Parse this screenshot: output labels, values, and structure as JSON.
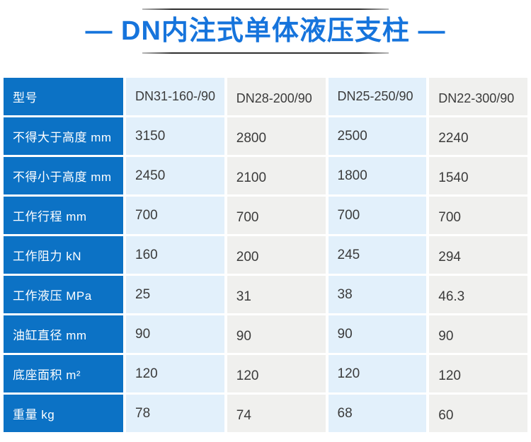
{
  "title": {
    "text": "— DN内注式单体液压支柱 —"
  },
  "colors": {
    "title_blue": "#1674dc",
    "header_blue": "#0c72c5",
    "cell_blue": "#e2f0fb",
    "cell_gray": "#f0f0ee",
    "value_text": "#3b3b3b"
  },
  "table": {
    "corner_label": "型号",
    "models": [
      "DN31-160-/90",
      "DN28-200/90",
      "DN25-250/90",
      "DN22-300/90"
    ],
    "rows": [
      {
        "label": "不得大于高度 mm",
        "values": [
          "3150",
          "2800",
          "2500",
          "2240"
        ]
      },
      {
        "label": "不得小于高度 mm",
        "values": [
          "2450",
          "2100",
          "1800",
          "1540"
        ]
      },
      {
        "label": "工作行程 mm",
        "values": [
          "700",
          "700",
          "700",
          "700"
        ]
      },
      {
        "label": "工作阻力 kN",
        "values": [
          "160",
          "200",
          "245",
          "294"
        ]
      },
      {
        "label": "工作液压 MPa",
        "values": [
          "25",
          "31",
          "38",
          "46.3"
        ]
      },
      {
        "label": "油缸直径 mm",
        "values": [
          "90",
          "90",
          "90",
          "90"
        ]
      },
      {
        "label": "底座面积 m²",
        "values": [
          "120",
          "120",
          "120",
          "120"
        ]
      },
      {
        "label": "重量 kg",
        "values": [
          "78",
          "74",
          "68",
          "60"
        ]
      }
    ]
  },
  "chart_data": {
    "type": "table",
    "title": "DN内注式单体液压支柱",
    "columns": [
      "型号",
      "DN31-160-/90",
      "DN28-200/90",
      "DN25-250/90",
      "DN22-300/90"
    ],
    "rows": [
      [
        "不得大于高度 mm",
        3150,
        2800,
        2500,
        2240
      ],
      [
        "不得小于高度 mm",
        2450,
        2100,
        1800,
        1540
      ],
      [
        "工作行程 mm",
        700,
        700,
        700,
        700
      ],
      [
        "工作阻力 kN",
        160,
        200,
        245,
        294
      ],
      [
        "工作液压 MPa",
        25,
        31,
        38,
        46.3
      ],
      [
        "油缸直径 mm",
        90,
        90,
        90,
        90
      ],
      [
        "底座面积 m²",
        120,
        120,
        120,
        120
      ],
      [
        "重量 kg",
        78,
        74,
        68,
        60
      ]
    ]
  }
}
